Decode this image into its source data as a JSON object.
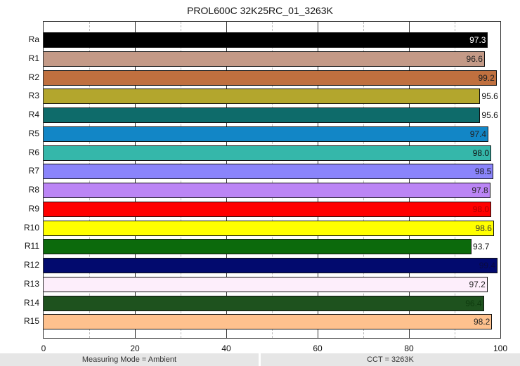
{
  "window": {
    "title": "PROL600C 32K25RC_01_3263K"
  },
  "chart_data": {
    "type": "bar",
    "orientation": "horizontal",
    "title": "PROL600C 32K25RC_01_3263K",
    "xlabel": "",
    "ylabel": "",
    "xlim": [
      0,
      100
    ],
    "x_ticks": [
      0,
      20,
      40,
      60,
      80,
      100
    ],
    "grid": {
      "major": [
        20,
        40,
        60,
        80
      ],
      "minor_dashed": [
        10,
        30,
        50,
        70,
        90
      ]
    },
    "legend": null,
    "categories": [
      "Ra",
      "R1",
      "R2",
      "R3",
      "R4",
      "R5",
      "R6",
      "R7",
      "R8",
      "R9",
      "R10",
      "R11",
      "R12",
      "R13",
      "R14",
      "R15"
    ],
    "values": [
      97.3,
      96.6,
      99.2,
      95.6,
      95.6,
      97.4,
      98.0,
      98.5,
      97.8,
      98.0,
      98.6,
      93.7,
      99.4,
      97.2,
      96.4,
      98.2
    ],
    "value_labels": [
      "97.3",
      "96.6",
      "99.2",
      "95.6",
      "95.6",
      "97.4",
      "98.0",
      "98.5",
      "97.8",
      "98.0",
      "98.6",
      "93.7",
      "99.4",
      "97.2",
      "96.4",
      "98.2"
    ],
    "colors": [
      "#000000",
      "#c49a87",
      "#c0703f",
      "#b3a62d",
      "#0e6b6a",
      "#1286c6",
      "#35b7aa",
      "#8a84fb",
      "#bb85f5",
      "#ff0000",
      "#ffff00",
      "#0c6a0c",
      "#020a6e",
      "#fdeefb",
      "#1e521e",
      "#fec18e"
    ],
    "label_colors": [
      "#ffffff",
      "#222222",
      "#222222",
      "#111111",
      "#111111",
      "#222222",
      "#111111",
      "#111111",
      "#222222",
      "#aa0000",
      "#333333",
      "#111111",
      "#0a0a40",
      "#222222",
      "#0e3a0e",
      "#222222"
    ],
    "label_inside": [
      true,
      true,
      true,
      false,
      false,
      true,
      true,
      true,
      true,
      true,
      true,
      false,
      true,
      true,
      true,
      true
    ]
  },
  "status_bar": {
    "left": "Measuring Mode = Ambient",
    "right": "CCT = 3263K"
  }
}
